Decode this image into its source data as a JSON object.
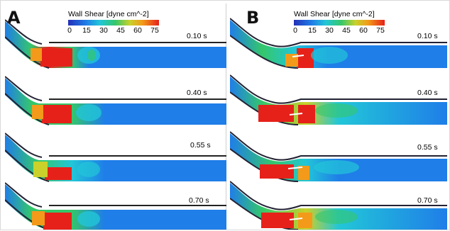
{
  "figure": {
    "panels": [
      {
        "letter": "A",
        "legend": {
          "title": "Wall Shear  [dyne cm^-2]",
          "ticks": [
            "0",
            "15",
            "30",
            "45",
            "60",
            "75"
          ]
        },
        "frames": [
          {
            "time": "0.10 s"
          },
          {
            "time": "0.40 s"
          },
          {
            "time": "0.55 s"
          },
          {
            "time": "0.70 s"
          }
        ]
      },
      {
        "letter": "B",
        "legend": {
          "title": "Wall Shear  [dyne cm^-2]",
          "ticks": [
            "0",
            "15",
            "30",
            "45",
            "60",
            "75"
          ]
        },
        "frames": [
          {
            "time": "0.10 s"
          },
          {
            "time": "0.40 s"
          },
          {
            "time": "0.55 s"
          },
          {
            "time": "0.70 s"
          }
        ]
      }
    ],
    "colormap": [
      "#2230b8",
      "#1f7ee8",
      "#22c6d8",
      "#35c76a",
      "#c9d12a",
      "#f39a1a",
      "#e6211a"
    ]
  }
}
